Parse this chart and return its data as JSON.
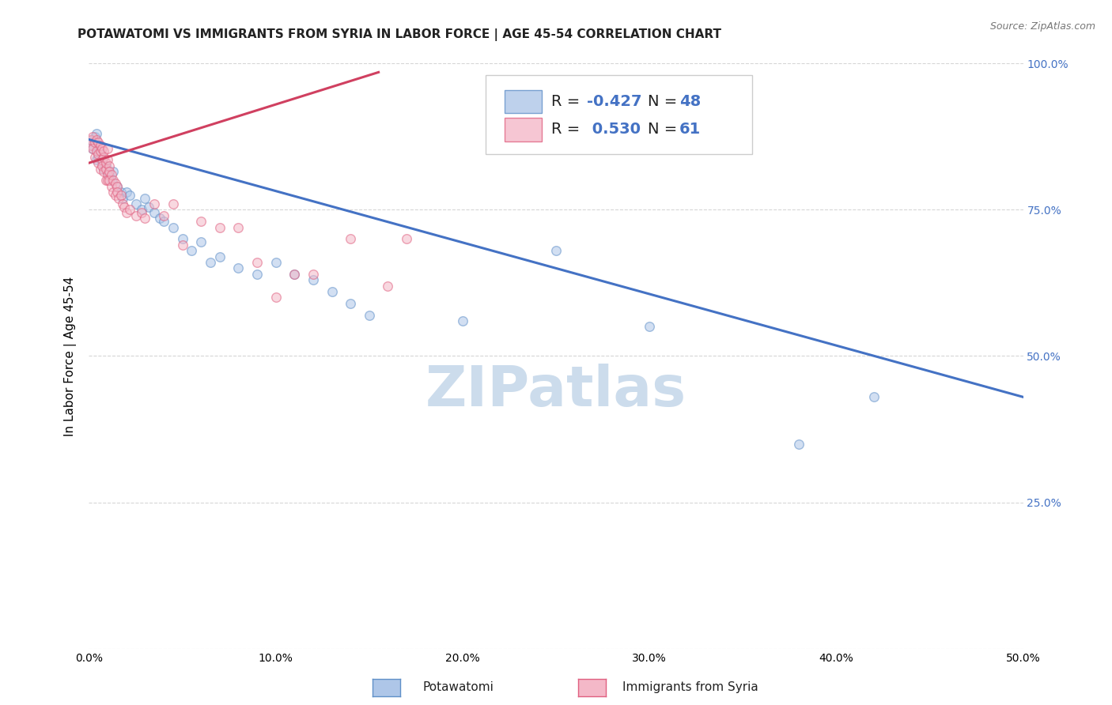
{
  "title": "POTAWATOMI VS IMMIGRANTS FROM SYRIA IN LABOR FORCE | AGE 45-54 CORRELATION CHART",
  "source": "Source: ZipAtlas.com",
  "ylabel": "In Labor Force | Age 45-54",
  "xmin": 0.0,
  "xmax": 0.5,
  "ymin": 0.0,
  "ymax": 1.0,
  "xticks": [
    0.0,
    0.1,
    0.2,
    0.3,
    0.4,
    0.5
  ],
  "yticks": [
    0.0,
    0.25,
    0.5,
    0.75,
    1.0
  ],
  "xtick_labels": [
    "0.0%",
    "10.0%",
    "20.0%",
    "30.0%",
    "40.0%",
    "50.0%"
  ],
  "ytick_labels": [
    "",
    "25.0%",
    "50.0%",
    "75.0%",
    "100.0%"
  ],
  "watermark": "ZIPatlas",
  "blue_scatter_x": [
    0.001,
    0.002,
    0.002,
    0.003,
    0.003,
    0.004,
    0.004,
    0.005,
    0.005,
    0.006,
    0.007,
    0.008,
    0.009,
    0.01,
    0.011,
    0.012,
    0.013,
    0.015,
    0.017,
    0.018,
    0.02,
    0.022,
    0.025,
    0.028,
    0.03,
    0.032,
    0.035,
    0.038,
    0.04,
    0.045,
    0.05,
    0.055,
    0.06,
    0.065,
    0.07,
    0.08,
    0.09,
    0.1,
    0.11,
    0.12,
    0.13,
    0.14,
    0.15,
    0.2,
    0.25,
    0.3,
    0.38,
    0.42
  ],
  "blue_scatter_y": [
    0.87,
    0.86,
    0.855,
    0.865,
    0.875,
    0.88,
    0.835,
    0.84,
    0.85,
    0.845,
    0.83,
    0.82,
    0.825,
    0.815,
    0.81,
    0.8,
    0.815,
    0.79,
    0.78,
    0.77,
    0.78,
    0.775,
    0.76,
    0.75,
    0.77,
    0.755,
    0.745,
    0.735,
    0.73,
    0.72,
    0.7,
    0.68,
    0.695,
    0.66,
    0.67,
    0.65,
    0.64,
    0.66,
    0.64,
    0.63,
    0.61,
    0.59,
    0.57,
    0.56,
    0.68,
    0.55,
    0.35,
    0.43
  ],
  "pink_scatter_x": [
    0.001,
    0.001,
    0.002,
    0.002,
    0.003,
    0.003,
    0.004,
    0.004,
    0.005,
    0.005,
    0.005,
    0.006,
    0.006,
    0.006,
    0.007,
    0.007,
    0.007,
    0.008,
    0.008,
    0.008,
    0.009,
    0.009,
    0.009,
    0.01,
    0.01,
    0.01,
    0.01,
    0.011,
    0.011,
    0.011,
    0.012,
    0.012,
    0.013,
    0.013,
    0.014,
    0.014,
    0.015,
    0.015,
    0.016,
    0.017,
    0.018,
    0.019,
    0.02,
    0.022,
    0.025,
    0.028,
    0.03,
    0.035,
    0.04,
    0.045,
    0.05,
    0.06,
    0.07,
    0.08,
    0.09,
    0.1,
    0.11,
    0.12,
    0.14,
    0.16,
    0.17
  ],
  "pink_scatter_y": [
    0.86,
    0.87,
    0.855,
    0.875,
    0.84,
    0.865,
    0.85,
    0.87,
    0.845,
    0.865,
    0.83,
    0.82,
    0.85,
    0.86,
    0.835,
    0.855,
    0.825,
    0.84,
    0.815,
    0.85,
    0.82,
    0.83,
    0.8,
    0.835,
    0.81,
    0.8,
    0.855,
    0.825,
    0.815,
    0.8,
    0.81,
    0.79,
    0.8,
    0.78,
    0.795,
    0.775,
    0.79,
    0.78,
    0.77,
    0.775,
    0.76,
    0.755,
    0.745,
    0.75,
    0.74,
    0.745,
    0.735,
    0.76,
    0.74,
    0.76,
    0.69,
    0.73,
    0.72,
    0.72,
    0.66,
    0.6,
    0.64,
    0.64,
    0.7,
    0.62,
    0.7
  ],
  "blue_line_x": [
    0.0,
    0.5
  ],
  "blue_line_y": [
    0.87,
    0.43
  ],
  "pink_line_x": [
    0.0,
    0.155
  ],
  "pink_line_y": [
    0.83,
    0.985
  ],
  "blue_color": "#aec6e8",
  "pink_color": "#f4b8c8",
  "blue_edge_color": "#6090c8",
  "pink_edge_color": "#e06080",
  "blue_line_color": "#4472c4",
  "pink_line_color": "#d04060",
  "background_color": "#ffffff",
  "grid_color": "#cccccc",
  "title_fontsize": 11,
  "axis_label_fontsize": 11,
  "tick_fontsize": 10,
  "legend_fontsize": 14,
  "watermark_fontsize": 52,
  "watermark_color": "#ccdcec",
  "right_ytick_color": "#4472c4",
  "scatter_size": 70,
  "scatter_alpha": 0.55,
  "scatter_linewidth": 1.0
}
